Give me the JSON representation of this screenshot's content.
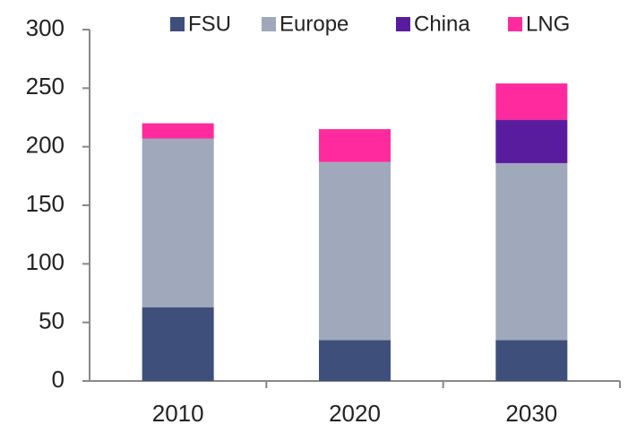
{
  "chart_data": {
    "type": "stacked_bar",
    "categories": [
      "2010",
      "2020",
      "2030"
    ],
    "series": [
      {
        "name": "FSU",
        "color": "#3e4f7b",
        "values": [
          63,
          35,
          35
        ]
      },
      {
        "name": "Europe",
        "color": "#a0a8bc",
        "values": [
          144,
          152,
          151
        ]
      },
      {
        "name": "China",
        "color": "#5a1c9e",
        "values": [
          0,
          0,
          37
        ]
      },
      {
        "name": "LNG",
        "color": "#ff2a9d",
        "values": [
          13,
          28,
          31
        ]
      }
    ],
    "ylim": [
      0,
      300
    ],
    "yticks": [
      0,
      50,
      100,
      150,
      200,
      250,
      300
    ],
    "grid": false,
    "legend": "top"
  }
}
